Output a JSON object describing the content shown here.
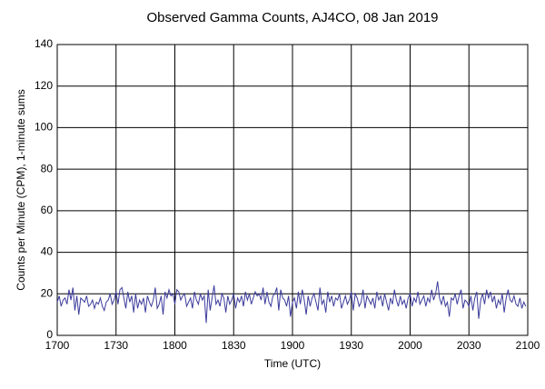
{
  "chart_data": {
    "type": "line",
    "title": "Observed Gamma Counts, AJ4CO, 08 Jan 2019",
    "x_label": "Time (UTC)",
    "y_label": "Counts per Minute (CPM), 1-minute sums",
    "color": "#3c3c9c",
    "grid": true,
    "xlim": [
      0,
      240
    ],
    "xticks": [
      {
        "value": 0,
        "label": "1700"
      },
      {
        "value": 30,
        "label": "1730"
      },
      {
        "value": 60,
        "label": "1800"
      },
      {
        "value": 90,
        "label": "1830"
      },
      {
        "value": 120,
        "label": "1900"
      },
      {
        "value": 150,
        "label": "1930"
      },
      {
        "value": 180,
        "label": "2000"
      },
      {
        "value": 210,
        "label": "2030"
      },
      {
        "value": 240,
        "label": "2100"
      }
    ],
    "ylim": [
      0,
      140
    ],
    "yticks": [
      0,
      20,
      40,
      60,
      80,
      100,
      120,
      140
    ],
    "values": [
      16,
      19,
      14,
      17,
      18,
      15,
      22,
      17,
      23,
      12,
      19,
      10,
      18,
      17,
      16,
      19,
      14,
      15,
      17,
      13,
      16,
      15,
      18,
      14,
      12,
      16,
      17,
      20,
      15,
      17,
      21,
      15,
      22,
      23,
      18,
      13,
      21,
      16,
      19,
      11,
      20,
      13,
      17,
      15,
      18,
      11,
      19,
      16,
      14,
      17,
      23,
      13,
      15,
      19,
      10,
      21,
      18,
      22,
      19,
      20,
      15,
      22,
      21,
      17,
      19,
      20,
      14,
      16,
      18,
      13,
      21,
      17,
      15,
      20,
      17,
      19,
      6,
      22,
      12,
      18,
      24,
      15,
      17,
      14,
      20,
      18,
      11,
      19,
      15,
      17,
      20,
      13,
      18,
      16,
      19,
      14,
      21,
      17,
      20,
      15,
      18,
      21,
      19,
      20,
      17,
      23,
      15,
      21,
      16,
      14,
      19,
      20,
      23,
      12,
      22,
      18,
      17,
      14,
      19,
      9,
      16,
      18,
      13,
      21,
      15,
      22,
      17,
      10,
      19,
      14,
      18,
      20,
      16,
      12,
      23,
      15,
      17,
      11,
      21,
      16,
      19,
      14,
      18,
      17,
      20,
      13,
      16,
      19,
      15,
      17,
      21,
      12,
      20,
      18,
      14,
      16,
      22,
      13,
      19,
      17,
      15,
      18,
      13,
      21,
      17,
      19,
      14,
      20,
      16,
      12,
      18,
      15,
      22,
      17,
      14,
      19,
      15,
      17,
      13,
      18,
      20,
      14,
      18,
      16,
      21,
      15,
      17,
      19,
      14,
      18,
      16,
      22,
      17,
      20,
      26,
      18,
      15,
      19,
      14,
      16,
      9,
      18,
      17,
      20,
      15,
      19,
      22,
      13,
      17,
      16,
      14,
      19,
      12,
      18,
      21,
      8,
      17,
      20,
      15,
      22,
      18,
      21,
      16,
      19,
      13,
      17,
      15,
      20,
      11,
      18,
      22,
      17,
      16,
      19,
      15,
      14,
      18,
      13,
      16,
      14
    ]
  }
}
